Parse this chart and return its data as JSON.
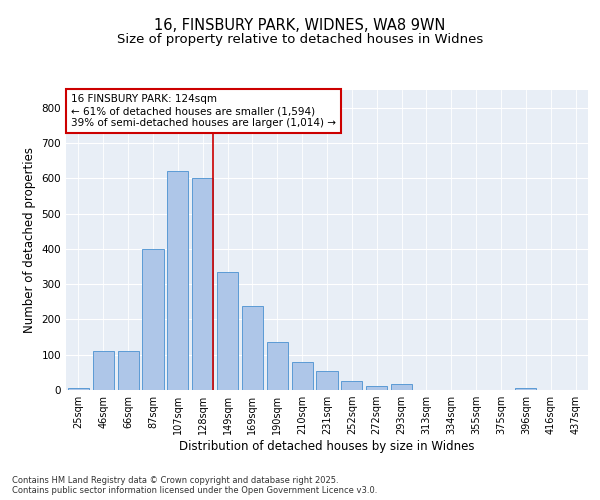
{
  "title_line1": "16, FINSBURY PARK, WIDNES, WA8 9WN",
  "title_line2": "Size of property relative to detached houses in Widnes",
  "xlabel": "Distribution of detached houses by size in Widnes",
  "ylabel": "Number of detached properties",
  "categories": [
    "25sqm",
    "46sqm",
    "66sqm",
    "87sqm",
    "107sqm",
    "128sqm",
    "149sqm",
    "169sqm",
    "190sqm",
    "210sqm",
    "231sqm",
    "252sqm",
    "272sqm",
    "293sqm",
    "313sqm",
    "334sqm",
    "355sqm",
    "375sqm",
    "396sqm",
    "416sqm",
    "437sqm"
  ],
  "values": [
    5,
    110,
    110,
    400,
    620,
    600,
    335,
    237,
    137,
    78,
    55,
    25,
    12,
    17,
    0,
    0,
    0,
    0,
    7,
    0,
    0
  ],
  "bar_color": "#aec6e8",
  "bar_edge_color": "#5b9bd5",
  "vline_x_idx": 5,
  "vline_color": "#cc0000",
  "annotation_text": "16 FINSBURY PARK: 124sqm\n← 61% of detached houses are smaller (1,594)\n39% of semi-detached houses are larger (1,014) →",
  "annotation_box_color": "#cc0000",
  "background_color": "#e8eef6",
  "ylim": [
    0,
    850
  ],
  "yticks": [
    0,
    100,
    200,
    300,
    400,
    500,
    600,
    700,
    800
  ],
  "footnote": "Contains HM Land Registry data © Crown copyright and database right 2025.\nContains public sector information licensed under the Open Government Licence v3.0.",
  "title_fontsize": 10.5,
  "subtitle_fontsize": 9.5,
  "label_fontsize": 8.5,
  "tick_fontsize": 7,
  "annot_fontsize": 7.5,
  "footnote_fontsize": 6
}
